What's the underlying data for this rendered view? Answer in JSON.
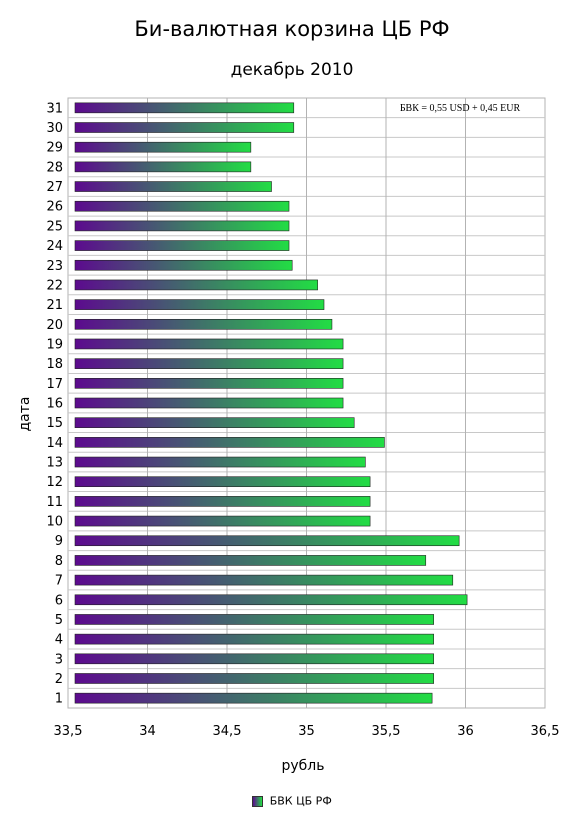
{
  "chart_data": {
    "type": "bar",
    "orientation": "horizontal",
    "title": "Би-валютная корзина ЦБ РФ",
    "subtitle": "декабрь 2010",
    "xlabel": "рубль",
    "ylabel": "дата",
    "xlim": [
      33.5,
      36.5
    ],
    "xticks": [
      "33,5",
      "34",
      "34,5",
      "35",
      "35,5",
      "36",
      "36,5"
    ],
    "xtick_values": [
      33.5,
      34,
      34.5,
      35,
      35.5,
      36,
      36.5
    ],
    "grid": true,
    "legend_position": "bottom",
    "annotation": "БВК = 0,55 USD + 0,45 EUR",
    "categories": [
      "1",
      "2",
      "3",
      "4",
      "5",
      "6",
      "7",
      "8",
      "9",
      "10",
      "11",
      "12",
      "13",
      "14",
      "15",
      "16",
      "17",
      "18",
      "19",
      "20",
      "21",
      "22",
      "23",
      "24",
      "25",
      "26",
      "27",
      "28",
      "29",
      "30",
      "31"
    ],
    "series": [
      {
        "name": "БВК ЦБ РФ",
        "colors": [
          "#5c0a8e",
          "#22dd44"
        ],
        "values": [
          35.79,
          35.8,
          35.8,
          35.8,
          35.8,
          36.01,
          35.92,
          35.75,
          35.96,
          35.4,
          35.4,
          35.4,
          35.37,
          35.49,
          35.3,
          35.23,
          35.23,
          35.23,
          35.23,
          35.16,
          35.11,
          35.07,
          34.91,
          34.89,
          34.89,
          34.89,
          34.78,
          34.65,
          34.65,
          34.92,
          34.92
        ]
      }
    ]
  }
}
